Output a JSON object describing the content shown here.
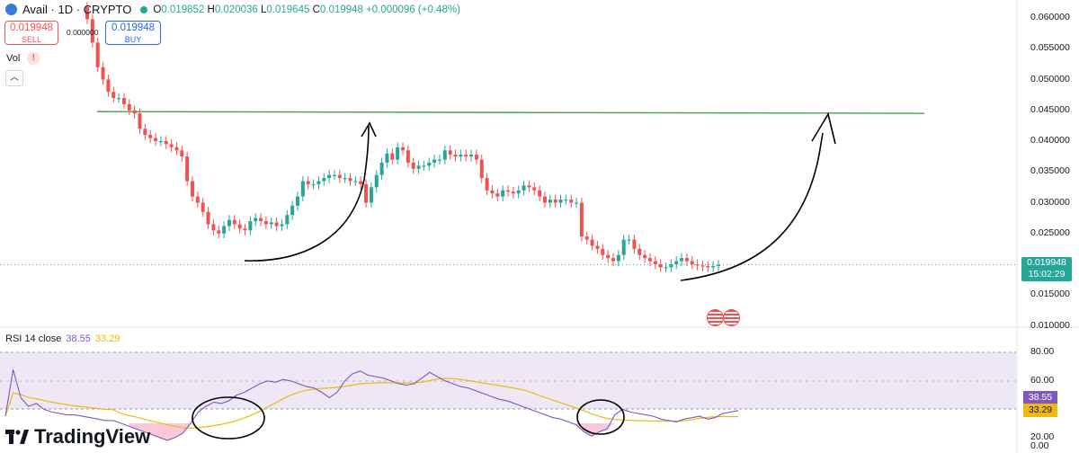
{
  "header": {
    "symbol": "Avail",
    "interval": "1D",
    "exchange": "CRYPTO",
    "title": "Avail · 1D · CRYPTO",
    "open": "0.019852",
    "high": "0.020036",
    "low": "0.019645",
    "close": "0.019948",
    "change": "+0.000096 (+0.48%)"
  },
  "trade": {
    "sell_price": "0.019948",
    "sell_label": "SELL",
    "buy_price": "0.019948",
    "buy_label": "BUY",
    "spread": "0.000000"
  },
  "volume": {
    "label": "Vol",
    "warning": "!"
  },
  "collapse_icon": "chevron-up-icon",
  "price_axis": {
    "ticks": [
      "0.060000",
      "0.055000",
      "0.050000",
      "0.045000",
      "0.040000",
      "0.035000",
      "0.030000",
      "0.025000",
      "0.020000",
      "0.015000",
      "0.010000"
    ],
    "current_price": "0.019948",
    "countdown": "15:02:29"
  },
  "rsi_panel": {
    "label": "RSI 14 close",
    "rsi_value": "38.55",
    "ma_value": "33.29",
    "ticks": [
      "80.00",
      "60.00",
      "20.00",
      "0.00"
    ]
  },
  "brand": {
    "name": "TradingView"
  },
  "colors": {
    "up": "#26a69a",
    "down": "#ef5350",
    "rsi": "#7e57c2",
    "rsi_ma": "#f0b90b",
    "level_line": "#43a047",
    "rsi_band": "#ede7f6"
  },
  "chart_data": [
    {
      "type": "candlestick",
      "title": "",
      "price_range": [
        0.01,
        0.062
      ],
      "horizontal_line": 0.0448,
      "current_price": 0.019948,
      "closes": [
        0.0598,
        0.056,
        0.052,
        0.05,
        0.048,
        0.047,
        0.047,
        0.046,
        0.045,
        0.0445,
        0.042,
        0.041,
        0.0405,
        0.04,
        0.04,
        0.0395,
        0.039,
        0.0385,
        0.0375,
        0.0335,
        0.031,
        0.03,
        0.0285,
        0.0265,
        0.0255,
        0.025,
        0.0262,
        0.0272,
        0.0265,
        0.0258,
        0.0255,
        0.027,
        0.0275,
        0.027,
        0.0265,
        0.0268,
        0.0262,
        0.0265,
        0.028,
        0.0295,
        0.031,
        0.0335,
        0.033,
        0.033,
        0.0335,
        0.034,
        0.0345,
        0.0345,
        0.034,
        0.034,
        0.0335,
        0.0335,
        0.033,
        0.03,
        0.0325,
        0.0345,
        0.0365,
        0.038,
        0.037,
        0.039,
        0.0385,
        0.0365,
        0.0355,
        0.036,
        0.036,
        0.0365,
        0.037,
        0.037,
        0.0385,
        0.0378,
        0.0375,
        0.0378,
        0.0375,
        0.0378,
        0.037,
        0.034,
        0.032,
        0.0315,
        0.031,
        0.032,
        0.0318,
        0.0315,
        0.032,
        0.0328,
        0.0325,
        0.032,
        0.031,
        0.03,
        0.0305,
        0.03,
        0.0305,
        0.0305,
        0.03,
        0.03,
        0.0245,
        0.024,
        0.023,
        0.0225,
        0.0215,
        0.021,
        0.0205,
        0.0215,
        0.024,
        0.024,
        0.0225,
        0.0215,
        0.021,
        0.0205,
        0.02,
        0.0195,
        0.0195,
        0.02,
        0.0205,
        0.021,
        0.0205,
        0.02,
        0.0198,
        0.0197,
        0.0195,
        0.0197,
        0.0199
      ]
    },
    {
      "type": "line",
      "title": "RSI 14 close",
      "ylim": [
        0,
        80
      ],
      "band": [
        30,
        70
      ],
      "series": [
        {
          "name": "RSI",
          "values": [
            35,
            68,
            48,
            42,
            44,
            40,
            38,
            37,
            36,
            36,
            35,
            34,
            33,
            32,
            32,
            30,
            28,
            26,
            24,
            22,
            20,
            18,
            20,
            23,
            30,
            38,
            42,
            45,
            44,
            46,
            50,
            52,
            55,
            58,
            60,
            59,
            61,
            60,
            58,
            56,
            55,
            52,
            48,
            52,
            60,
            65,
            67,
            64,
            63,
            62,
            60,
            58,
            57,
            58,
            62,
            66,
            63,
            60,
            58,
            56,
            55,
            53,
            51,
            49,
            47,
            46,
            44,
            42,
            40,
            38,
            36,
            34,
            33,
            31,
            29,
            24,
            21,
            24,
            26,
            36,
            40,
            38,
            37,
            36,
            35,
            33,
            32,
            31,
            33,
            34,
            35,
            33,
            34,
            37,
            38,
            39
          ]
        },
        {
          "name": "MA",
          "values": []
        }
      ]
    }
  ]
}
